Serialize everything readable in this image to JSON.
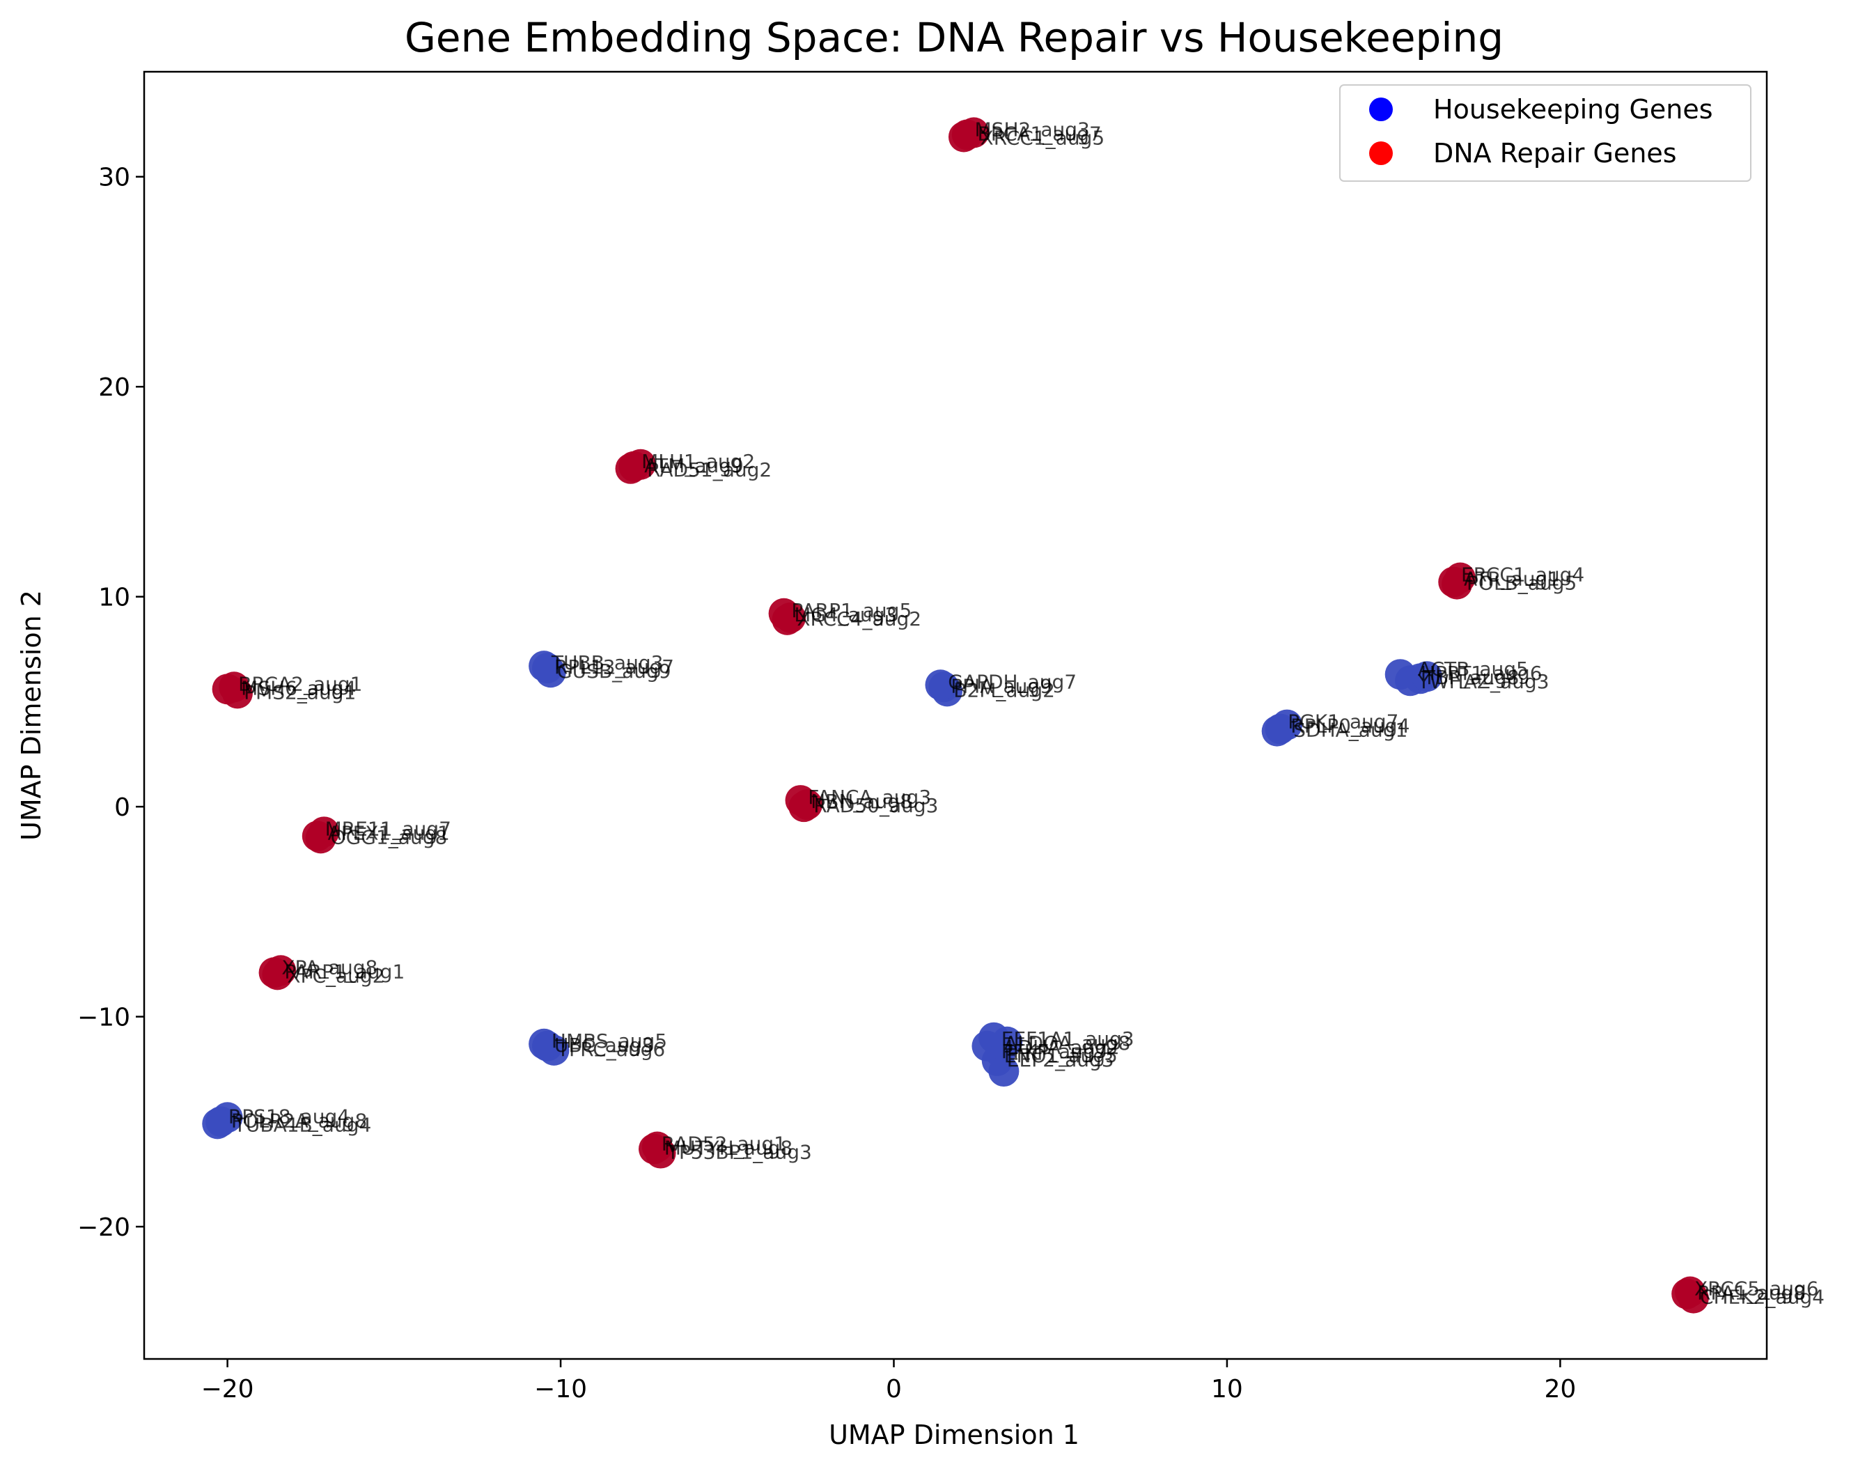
{
  "chart_data": {
    "type": "scatter",
    "title": "Gene Embedding Space: DNA Repair vs Housekeeping",
    "xlabel": "UMAP Dimension 1",
    "ylabel": "UMAP Dimension 2",
    "xlim": [
      -22.5,
      26.2
    ],
    "ylim": [
      -26.3,
      35.0
    ],
    "xticks": [
      -20,
      -10,
      0,
      10,
      20
    ],
    "yticks": [
      -20,
      -10,
      0,
      10,
      20,
      30
    ],
    "xtick_labels": [
      "−20",
      "−10",
      "0",
      "10",
      "20"
    ],
    "ytick_labels": [
      "−20",
      "−10",
      "0",
      "10",
      "20",
      "30"
    ],
    "grid": false,
    "legend_position": "top-right",
    "series": [
      {
        "name": "Housekeeping Genes",
        "color": "#3a4cc0",
        "legend_color": "#0000ff",
        "points": [
          {
            "x": -10.4,
            "y": 6.6
          },
          {
            "x": -10.3,
            "y": 6.4
          },
          {
            "x": -10.5,
            "y": 6.7
          },
          {
            "x": 1.5,
            "y": 5.7
          },
          {
            "x": 1.6,
            "y": 5.5
          },
          {
            "x": 1.4,
            "y": 5.8
          },
          {
            "x": 15.2,
            "y": 6.3
          },
          {
            "x": 15.5,
            "y": 6.0
          },
          {
            "x": 15.8,
            "y": 6.1
          },
          {
            "x": 16.0,
            "y": 6.2
          },
          {
            "x": 11.6,
            "y": 3.7
          },
          {
            "x": 11.8,
            "y": 3.9
          },
          {
            "x": 11.5,
            "y": 3.6
          },
          {
            "x": -10.4,
            "y": -11.4
          },
          {
            "x": -10.2,
            "y": -11.6
          },
          {
            "x": -10.5,
            "y": -11.3
          },
          {
            "x": 3.0,
            "y": -11.0
          },
          {
            "x": 2.8,
            "y": -11.4
          },
          {
            "x": 3.2,
            "y": -11.7
          },
          {
            "x": 3.1,
            "y": -12.1
          },
          {
            "x": 3.3,
            "y": -12.6
          },
          {
            "x": 3.4,
            "y": -11.2
          },
          {
            "x": -20.2,
            "y": -15.0
          },
          {
            "x": -20.0,
            "y": -14.8
          },
          {
            "x": -20.3,
            "y": -15.1
          }
        ]
      },
      {
        "name": "DNA Repair Genes",
        "color": "#b00026",
        "legend_color": "#ff0000",
        "points": [
          {
            "x": 2.2,
            "y": 32.0
          },
          {
            "x": 2.4,
            "y": 32.1
          },
          {
            "x": 2.1,
            "y": 31.9
          },
          {
            "x": -7.8,
            "y": 16.2
          },
          {
            "x": -7.6,
            "y": 16.3
          },
          {
            "x": -7.9,
            "y": 16.1
          },
          {
            "x": 16.8,
            "y": 10.7
          },
          {
            "x": 17.0,
            "y": 10.9
          },
          {
            "x": 16.9,
            "y": 10.6
          },
          {
            "x": -3.3,
            "y": 9.2
          },
          {
            "x": -3.1,
            "y": 9.0
          },
          {
            "x": -3.2,
            "y": 8.9
          },
          {
            "x": -20.0,
            "y": 5.6
          },
          {
            "x": -19.7,
            "y": 5.4
          },
          {
            "x": -19.8,
            "y": 5.7
          },
          {
            "x": -2.8,
            "y": 0.3
          },
          {
            "x": -2.6,
            "y": 0.1
          },
          {
            "x": -2.7,
            "y": 0.0
          },
          {
            "x": -17.3,
            "y": -1.4
          },
          {
            "x": -17.1,
            "y": -1.2
          },
          {
            "x": -17.2,
            "y": -1.5
          },
          {
            "x": -18.6,
            "y": -7.9
          },
          {
            "x": -18.4,
            "y": -7.8
          },
          {
            "x": -18.5,
            "y": -8.0
          },
          {
            "x": -7.2,
            "y": -16.3
          },
          {
            "x": -7.0,
            "y": -16.5
          },
          {
            "x": -7.1,
            "y": -16.2
          },
          {
            "x": 23.8,
            "y": -23.2
          },
          {
            "x": 24.0,
            "y": -23.4
          },
          {
            "x": 23.9,
            "y": -23.1
          }
        ]
      }
    ],
    "point_label_groups": [
      {
        "x": 2.3,
        "y": 32.0,
        "labels": [
          "MSH2_aug3",
          "BRCA1_aug7",
          "XRCC1_aug5"
        ]
      },
      {
        "x": -7.7,
        "y": 16.2,
        "labels": [
          "MLH1_aug2",
          "ATM_aug9",
          "RAD51_aug2"
        ]
      },
      {
        "x": 16.9,
        "y": 10.8,
        "labels": [
          "ERCC1_aug4",
          "ATR_aug1",
          "POLB_aug5"
        ]
      },
      {
        "x": -3.2,
        "y": 9.1,
        "labels": [
          "PARP1_aug5",
          "LIG4_aug3",
          "XRCC4_aug2"
        ]
      },
      {
        "x": -19.8,
        "y": 5.6,
        "labels": [
          "BRCA2_aug1",
          "MSH6_aug4",
          "PMS2_aug1"
        ]
      },
      {
        "x": -2.7,
        "y": 0.2,
        "labels": [
          "FANCA_aug3",
          "NBN_aug8",
          "RAD50_aug3"
        ]
      },
      {
        "x": -17.2,
        "y": -1.3,
        "labels": [
          "MRE11_aug7",
          "APEX1_aug1",
          "OGG1_aug8"
        ]
      },
      {
        "x": -18.5,
        "y": -7.9,
        "labels": [
          "XPA_aug8",
          "PARP1_aug1",
          "XPC_aug2"
        ]
      },
      {
        "x": -7.1,
        "y": -16.3,
        "labels": [
          "RAD52_aug1",
          "MUTYH_aug8",
          "TP53BP1_aug3"
        ]
      },
      {
        "x": 23.9,
        "y": -23.2,
        "labels": [
          "XRCC5_aug6",
          "RPA1_aug8",
          "CHEK2_aug4"
        ]
      },
      {
        "x": -10.4,
        "y": 6.6,
        "labels": [
          "TUBB_aug3",
          "RPL13_aug7",
          "GUSB_aug9"
        ]
      },
      {
        "x": 1.5,
        "y": 5.7,
        "labels": [
          "GAPDH_aug7",
          "PPIA_aug9",
          "B2M_aug2"
        ]
      },
      {
        "x": 15.6,
        "y": 6.2,
        "labels": [
          "ACTB_aug5",
          "HPRT1_aug6",
          "TBP_aug8",
          "YWHAZ_aug3"
        ]
      },
      {
        "x": 11.7,
        "y": 3.8,
        "labels": [
          "PGK1_aug7",
          "RPLP0_aug4",
          "SDHA_aug1"
        ]
      },
      {
        "x": -10.4,
        "y": -11.4,
        "labels": [
          "HMBS_aug5",
          "UBC_aug3",
          "TFRC_aug6"
        ]
      },
      {
        "x": 3.1,
        "y": -11.6,
        "labels": [
          "EEF1A1_aug3",
          "ALDOA_aug8",
          "LDHA_aug2",
          "PFKP_aug7",
          "ENO1_aug5",
          "EEF2_aug3"
        ]
      },
      {
        "x": -20.1,
        "y": -15.0,
        "labels": [
          "RPS18_aug4",
          "POLR2A_aug8",
          "TUBA1B_aug4"
        ]
      }
    ]
  }
}
